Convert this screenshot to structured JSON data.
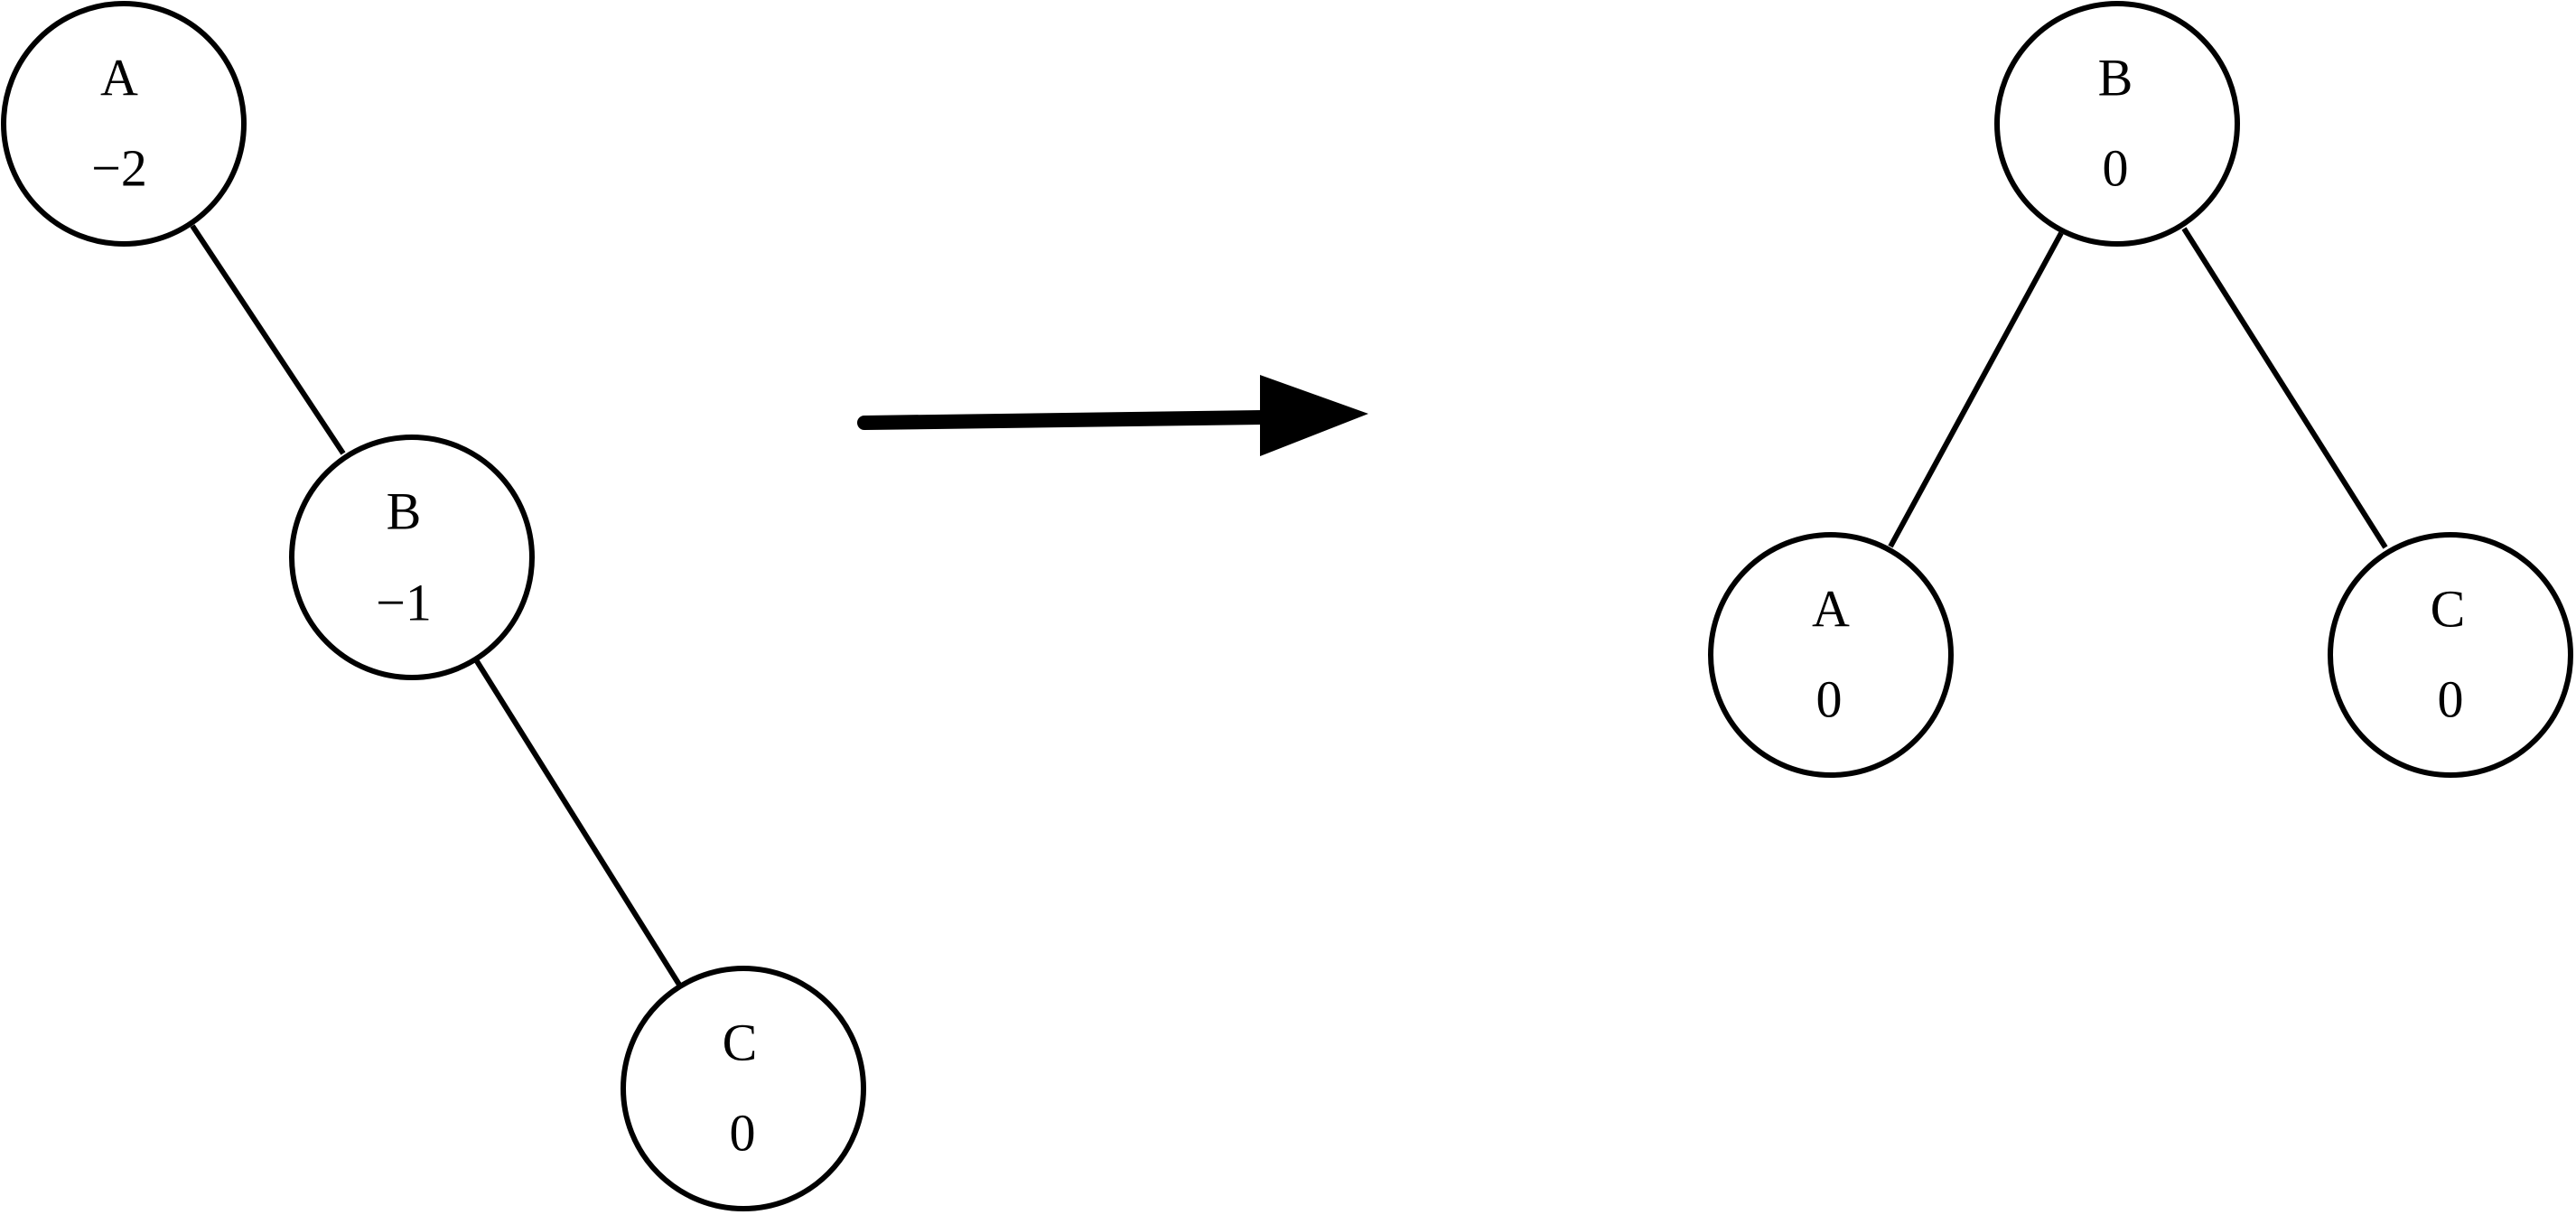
{
  "before_tree": {
    "nodes": [
      {
        "id": "A",
        "label": "A",
        "balance": "−2"
      },
      {
        "id": "B",
        "label": "B",
        "balance": "−1"
      },
      {
        "id": "C",
        "label": "C",
        "balance": "0"
      }
    ],
    "edges": [
      [
        "A",
        "B"
      ],
      [
        "B",
        "C"
      ]
    ]
  },
  "after_tree": {
    "nodes": [
      {
        "id": "B",
        "label": "B",
        "balance": "0"
      },
      {
        "id": "A",
        "label": "A",
        "balance": "0"
      },
      {
        "id": "C",
        "label": "C",
        "balance": "0"
      }
    ],
    "edges": [
      [
        "B",
        "A"
      ],
      [
        "B",
        "C"
      ]
    ]
  },
  "colors": {
    "stroke": "#000000",
    "background": "#ffffff"
  }
}
